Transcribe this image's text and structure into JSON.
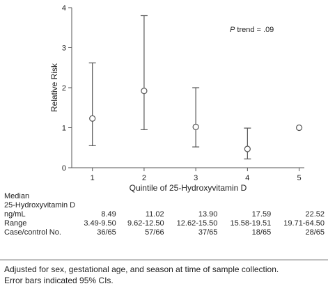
{
  "chart_data": {
    "type": "scatter",
    "title": "",
    "xlabel": "Quintile of 25-Hydroxyvitamin D",
    "ylabel": "Relative Risk",
    "x": [
      1,
      2,
      3,
      4,
      5
    ],
    "xticks": [
      "1",
      "2",
      "3",
      "4",
      "5"
    ],
    "yticks": [
      "0",
      "1",
      "2",
      "3",
      "4"
    ],
    "ylim": [
      0,
      4
    ],
    "xlim": [
      0.6,
      5.1
    ],
    "series": [
      {
        "values": [
          1.23,
          1.92,
          1.02,
          0.47,
          1.0
        ],
        "ci_lower": [
          0.55,
          0.95,
          0.52,
          0.22,
          null
        ],
        "ci_upper": [
          2.62,
          3.8,
          2.0,
          0.99,
          null
        ]
      }
    ],
    "annotations": [
      {
        "text_italic": "P",
        "text": " trend = .09"
      }
    ],
    "marker": "open-circle",
    "grid": false
  },
  "table": {
    "header_label_lines": [
      "Median",
      "25-Hydroxyvitamin D",
      "ng/mL"
    ],
    "rows": [
      {
        "label": "ng/mL",
        "values": [
          "8.49",
          "11.02",
          "13.90",
          "17.59",
          "22.52"
        ]
      },
      {
        "label": "Range",
        "values": [
          "3.49-9.50",
          "9.62-12.50",
          "12.62-15.50",
          "15.58-19.51",
          "19.71-64.50"
        ]
      },
      {
        "label": "Case/control No.",
        "values": [
          "36/65",
          "57/66",
          "37/65",
          "18/65",
          "28/65"
        ]
      }
    ]
  },
  "footnote": {
    "line1": "Adjusted for sex, gestational age, and season at time of sample collection.",
    "line2": "Error bars indicated 95% CIs."
  },
  "colors": {
    "axis": "#555555",
    "marker_stroke": "#555555",
    "marker_fill": "#ffffff",
    "text": "#222222"
  }
}
